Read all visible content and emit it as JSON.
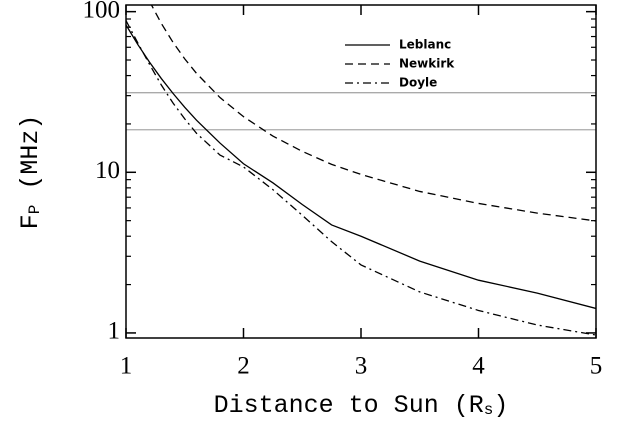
{
  "chart_data": {
    "type": "line",
    "xlabel": {
      "main": "Distance to Sun (R",
      "sub": "s",
      "rest": ")"
    },
    "ylabel": {
      "main": "F",
      "sub": "P",
      "rest": " (MHz)"
    },
    "x": [
      1,
      1.1,
      1.2,
      1.3,
      1.4,
      1.5,
      1.6,
      1.8,
      2,
      2.25,
      2.5,
      2.75,
      3,
      3.5,
      4,
      4.5,
      5
    ],
    "series": [
      {
        "name": "Leblanc",
        "color": "#000000",
        "dash": "solid",
        "values": [
          82.7,
          62.5,
          48.5,
          38.4,
          31.0,
          25.4,
          21.1,
          15.2,
          11.3,
          8.6,
          6.3,
          4.7,
          4.0,
          2.8,
          2.13,
          1.77,
          1.42
        ]
      },
      {
        "name": "Newkirk",
        "color": "#000000",
        "dash": "dashed",
        "values": [
          null,
          null,
          116,
          84.6,
          64.4,
          50.8,
          41.3,
          29.2,
          22.2,
          16.8,
          13.5,
          11.2,
          9.7,
          7.6,
          6.4,
          5.57,
          4.98
        ]
      },
      {
        "name": "Doyle",
        "color": "#000000",
        "dash": "dashdot",
        "values": [
          88,
          64,
          47,
          35,
          27,
          21.5,
          17.5,
          12.8,
          10.8,
          7.8,
          5.4,
          3.7,
          2.65,
          1.8,
          1.38,
          1.12,
          0.97
        ]
      }
    ],
    "hlines": {
      "color": "#aaaaaa",
      "values": [
        31.3,
        18.4
      ]
    },
    "xlim": [
      1,
      5
    ],
    "xticks": [
      1,
      2,
      3,
      4,
      5
    ],
    "ylim": [
      0.93,
      110
    ],
    "yscale": "log",
    "yticks": [
      1,
      10,
      100
    ],
    "yminor": [
      2,
      3,
      4,
      5,
      6,
      7,
      8,
      9,
      20,
      30,
      40,
      50,
      60,
      70,
      80,
      90
    ],
    "legend": "upper right"
  }
}
